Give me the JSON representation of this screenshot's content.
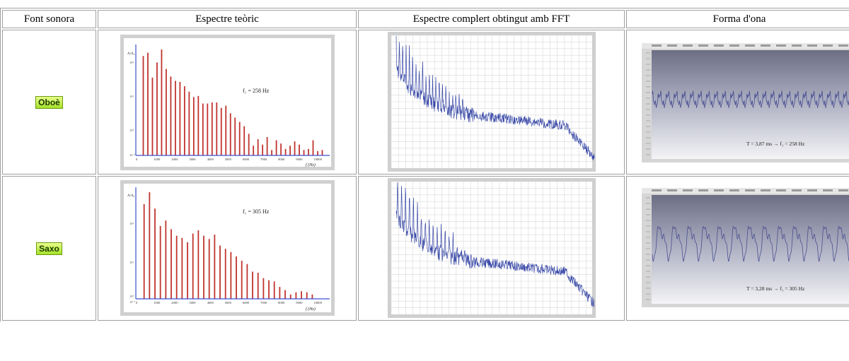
{
  "table": {
    "headers": [
      "Font sonora",
      "Espectre teòric",
      "Espectre complert obtingut amb FFT",
      "Forma d'ona"
    ],
    "rows": [
      {
        "source": "Oboè",
        "spectrum_annotation": "f₁ = 258 Hz",
        "waveform_annotation": "T = 3,87 ms  →  f₁ = 258 Hz"
      },
      {
        "source": "Saxo",
        "spectrum_annotation": "f₁ = 305 Hz",
        "waveform_annotation": "T = 3,28 ms  →  f₁ = 305 Hz"
      }
    ]
  },
  "spectrum_axis": {
    "x_ticks": [
      "0",
      "1000",
      "2000",
      "3000",
      "4000",
      "5000",
      "6000",
      "7000",
      "8000",
      "9000",
      "10000"
    ],
    "x_label": "f (Hz)",
    "y_label": "A/A₀",
    "y_ticks": [
      "10²",
      "10¹",
      "10⁰",
      "10⁻¹"
    ]
  },
  "chart_data": [
    {
      "type": "bar",
      "name": "oboe",
      "x": [
        258,
        516,
        774,
        1032,
        1290,
        1548,
        1806,
        2064,
        2322,
        2580,
        2838,
        3096,
        3354,
        3612,
        3870,
        4128,
        4386,
        4644,
        4902,
        5160,
        5418,
        5676,
        5934,
        6192,
        6450,
        6708,
        6966,
        7224,
        7482,
        7740,
        8000,
        8256,
        8514,
        8772,
        9030,
        9288,
        9546,
        9804,
        10062,
        10320
      ],
      "values": [
        0.92,
        0.95,
        0.72,
        0.86,
        0.98,
        0.8,
        0.73,
        0.69,
        0.68,
        0.64,
        0.59,
        0.54,
        0.55,
        0.48,
        0.48,
        0.49,
        0.49,
        0.44,
        0.46,
        0.39,
        0.35,
        0.31,
        0.27,
        0.2,
        0.09,
        0.15,
        0.1,
        0.17,
        0.05,
        0.14,
        0.11,
        0.06,
        0.09,
        0.13,
        0.1,
        0.05,
        0.06,
        0.14,
        0.04,
        0.05
      ],
      "xlabel": "f (Hz)",
      "ylabel": "A/A₀",
      "xlim": [
        0,
        10500
      ]
    },
    {
      "type": "bar",
      "name": "saxo",
      "x": [
        305,
        610,
        915,
        1220,
        1525,
        1830,
        2135,
        2440,
        2745,
        3050,
        3355,
        3660,
        3965,
        4270,
        4575,
        4880,
        5185,
        5490,
        5795,
        6100,
        6405,
        6710,
        7015,
        7320,
        7625,
        7930,
        8235,
        8540,
        8845,
        9150,
        9455,
        9760
      ],
      "values": [
        0.87,
        0.98,
        0.83,
        0.67,
        0.72,
        0.64,
        0.58,
        0.56,
        0.52,
        0.6,
        0.63,
        0.58,
        0.55,
        0.59,
        0.49,
        0.46,
        0.43,
        0.39,
        0.35,
        0.32,
        0.25,
        0.24,
        0.19,
        0.17,
        0.16,
        0.11,
        0.08,
        0.04,
        0.06,
        0.07,
        0.06,
        0.04
      ],
      "xlabel": "f (Hz)",
      "ylabel": "A/A₀",
      "xlim": [
        0,
        10500
      ]
    }
  ],
  "colors": {
    "bar": "#c0342e",
    "axis": "#3b4fd0",
    "fft_line": "#3a4aa8",
    "wave_line": "#4a4f90",
    "frame": "#d0d0d0",
    "pill_text": "#1b3a00"
  },
  "icons": {
    "arrow": "right-arrow"
  }
}
